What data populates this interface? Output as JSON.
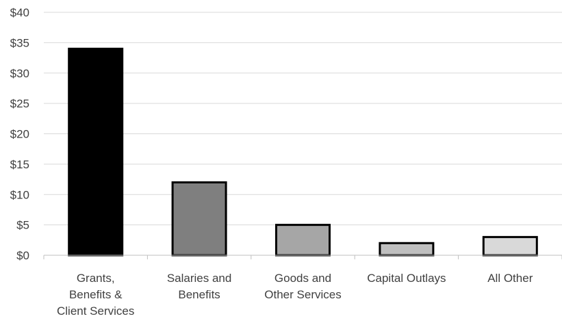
{
  "chart_data": {
    "type": "bar",
    "title": "",
    "xlabel": "",
    "ylabel": "",
    "categories": [
      [
        "Grants,",
        "Benefits &",
        "Client Services"
      ],
      [
        "Salaries and",
        "Benefits"
      ],
      [
        "Goods and",
        "Other Services"
      ],
      [
        "Capital Outlays"
      ],
      [
        "All Other"
      ]
    ],
    "values": [
      34,
      12,
      5,
      2,
      3
    ],
    "ylim": [
      0,
      40
    ],
    "yticks": [
      0,
      5,
      10,
      15,
      20,
      25,
      30,
      35,
      40
    ],
    "tick_prefix": "$",
    "grid": true,
    "legend": "none",
    "bar_fills": [
      "#000000",
      "#7f7f7f",
      "#a6a6a6",
      "#bfbfbf",
      "#d9d9d9"
    ],
    "bar_stroke": "#000000",
    "grid_color": "#d9d9d9",
    "text_color": "#404040"
  }
}
